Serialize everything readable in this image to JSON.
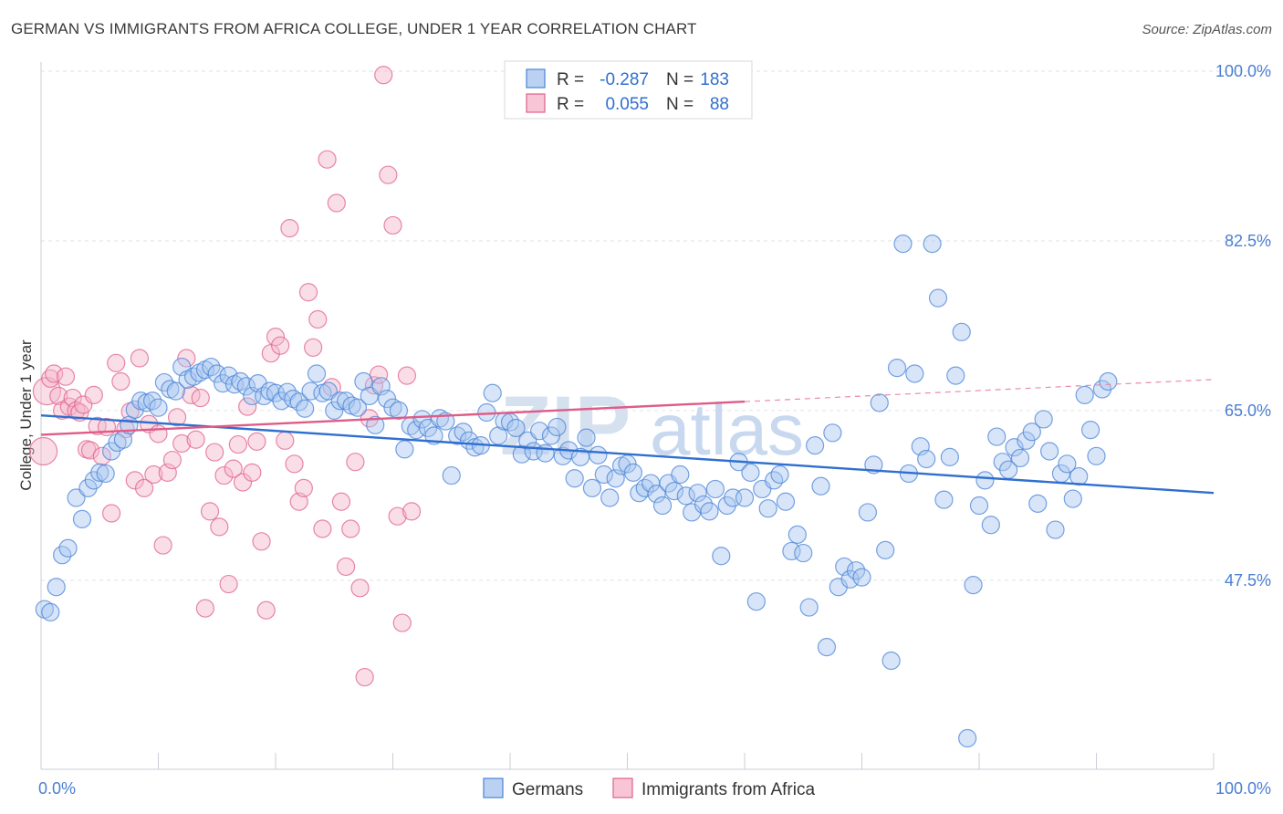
{
  "title": "GERMAN VS IMMIGRANTS FROM AFRICA COLLEGE, UNDER 1 YEAR CORRELATION CHART",
  "source": "Source: ZipAtlas.com",
  "watermark": {
    "zip": "ZIP",
    "atlas": "atlas"
  },
  "colors": {
    "blue": "#4a84d8",
    "blue_fill": "#a9c6ef",
    "pink": "#e0608c",
    "pink_fill": "#f5b6ca",
    "axis_label": "#4a7fd4"
  },
  "chart_data": {
    "type": "scatter",
    "ylabel": "College, Under 1 year",
    "xlim": [
      0,
      100
    ],
    "ylim": [
      28,
      100
    ],
    "x_ticks": [
      {
        "v": 0,
        "label": "0.0%"
      },
      {
        "v": 100,
        "label": "100.0%"
      }
    ],
    "y_ticks": [
      {
        "v": 100,
        "label": "100.0%"
      },
      {
        "v": 82.5,
        "label": "82.5%"
      },
      {
        "v": 65,
        "label": "65.0%"
      },
      {
        "v": 47.5,
        "label": "47.5%"
      }
    ],
    "legend": {
      "position": "top-center",
      "rows": [
        {
          "r_label": "R =",
          "r": "-0.287",
          "n_label": "N =",
          "n": "183"
        },
        {
          "r_label": "R =",
          "r": "0.055",
          "n_label": "N =",
          "n": "88"
        }
      ]
    },
    "bottom_legend": [
      "Germans",
      "Immigrants from Africa"
    ],
    "series": [
      {
        "name": "Germans",
        "trend": {
          "x": [
            0,
            100
          ],
          "y": [
            64.5,
            56.5
          ],
          "dashed_from": null
        },
        "points": [
          [
            0.3,
            44.5
          ],
          [
            0.8,
            44.2
          ],
          [
            1.3,
            46.8
          ],
          [
            1.8,
            50.1
          ],
          [
            2.3,
            50.8
          ],
          [
            3,
            56
          ],
          [
            3.5,
            53.8
          ],
          [
            4,
            57
          ],
          [
            4.5,
            57.8
          ],
          [
            5,
            58.6
          ],
          [
            5.5,
            58.5
          ],
          [
            6,
            60.8
          ],
          [
            6.5,
            61.7
          ],
          [
            7,
            62
          ],
          [
            7.5,
            63.5
          ],
          [
            8,
            65.1
          ],
          [
            8.5,
            66
          ],
          [
            9,
            65.8
          ],
          [
            9.5,
            66
          ],
          [
            10,
            65.3
          ],
          [
            10.5,
            67.9
          ],
          [
            11,
            67.2
          ],
          [
            11.5,
            67
          ],
          [
            12,
            69.5
          ],
          [
            12.5,
            68.2
          ],
          [
            13,
            68.5
          ],
          [
            13.5,
            68.9
          ],
          [
            14,
            69.2
          ],
          [
            14.5,
            69.5
          ],
          [
            15,
            68.8
          ],
          [
            15.5,
            67.8
          ],
          [
            16,
            68.6
          ],
          [
            16.5,
            67.7
          ],
          [
            17,
            68
          ],
          [
            17.5,
            67.5
          ],
          [
            18,
            66.5
          ],
          [
            18.5,
            67.8
          ],
          [
            19,
            66.5
          ],
          [
            19.5,
            67
          ],
          [
            20,
            66.8
          ],
          [
            20.5,
            66
          ],
          [
            21,
            66.9
          ],
          [
            21.5,
            66.2
          ],
          [
            22,
            65.9
          ],
          [
            22.5,
            65.2
          ],
          [
            23,
            67
          ],
          [
            23.5,
            68.8
          ],
          [
            24,
            66.8
          ],
          [
            24.5,
            67
          ],
          [
            25,
            65
          ],
          [
            25.5,
            66
          ],
          [
            26,
            66
          ],
          [
            26.5,
            65.5
          ],
          [
            27,
            65.3
          ],
          [
            27.5,
            68
          ],
          [
            28,
            66.5
          ],
          [
            28.5,
            63.5
          ],
          [
            29,
            67.5
          ],
          [
            29.5,
            66.2
          ],
          [
            30,
            65.3
          ],
          [
            30.5,
            65
          ],
          [
            31,
            61
          ],
          [
            31.5,
            63.4
          ],
          [
            32,
            63
          ],
          [
            32.5,
            64.1
          ],
          [
            33,
            63.2
          ],
          [
            33.5,
            62.4
          ],
          [
            34,
            64.2
          ],
          [
            34.5,
            63.9
          ],
          [
            35,
            58.3
          ],
          [
            35.5,
            62.4
          ],
          [
            36,
            62.8
          ],
          [
            36.5,
            61.9
          ],
          [
            37,
            61.2
          ],
          [
            37.5,
            61.4
          ],
          [
            38,
            64.8
          ],
          [
            38.5,
            66.8
          ],
          [
            39,
            62.4
          ],
          [
            39.5,
            63.9
          ],
          [
            40,
            63.8
          ],
          [
            40.5,
            63.2
          ],
          [
            41,
            60.5
          ],
          [
            41.5,
            61.9
          ],
          [
            42,
            60.8
          ],
          [
            42.5,
            62.9
          ],
          [
            43,
            60.6
          ],
          [
            43.5,
            62.4
          ],
          [
            44,
            63.3
          ],
          [
            44.5,
            60.3
          ],
          [
            45,
            60.9
          ],
          [
            45.5,
            58
          ],
          [
            46,
            60.2
          ],
          [
            46.5,
            62.2
          ],
          [
            47,
            57
          ],
          [
            47.5,
            60.4
          ],
          [
            48,
            58.4
          ],
          [
            48.5,
            56
          ],
          [
            49,
            58
          ],
          [
            49.5,
            59.3
          ],
          [
            50,
            59.5
          ],
          [
            50.5,
            58.6
          ],
          [
            51,
            56.5
          ],
          [
            51.5,
            57
          ],
          [
            52,
            57.5
          ],
          [
            52.5,
            56.4
          ],
          [
            53,
            55.2
          ],
          [
            53.5,
            57.5
          ],
          [
            54,
            56.7
          ],
          [
            54.5,
            58.4
          ],
          [
            55,
            56.2
          ],
          [
            55.5,
            54.5
          ],
          [
            56,
            56.5
          ],
          [
            56.5,
            55.3
          ],
          [
            57,
            54.6
          ],
          [
            57.5,
            56.9
          ],
          [
            58,
            50
          ],
          [
            58.5,
            55.2
          ],
          [
            59,
            56
          ],
          [
            59.5,
            59.7
          ],
          [
            60,
            56
          ],
          [
            60.5,
            58.6
          ],
          [
            61,
            45.3
          ],
          [
            61.5,
            56.9
          ],
          [
            62,
            54.9
          ],
          [
            62.5,
            57.8
          ],
          [
            63,
            58.4
          ],
          [
            63.5,
            55.6
          ],
          [
            64,
            50.5
          ],
          [
            64.5,
            52.2
          ],
          [
            65,
            50.3
          ],
          [
            65.5,
            44.7
          ],
          [
            66,
            61.4
          ],
          [
            66.5,
            57.2
          ],
          [
            67,
            40.6
          ],
          [
            67.5,
            62.7
          ],
          [
            68,
            46.8
          ],
          [
            68.5,
            48.9
          ],
          [
            69,
            47.6
          ],
          [
            69.5,
            48.5
          ],
          [
            70,
            47.8
          ],
          [
            70.5,
            54.5
          ],
          [
            71,
            59.4
          ],
          [
            71.5,
            65.8
          ],
          [
            72,
            50.6
          ],
          [
            72.5,
            39.2
          ],
          [
            73,
            69.4
          ],
          [
            73.5,
            82.2
          ],
          [
            74,
            58.5
          ],
          [
            74.5,
            68.8
          ],
          [
            75,
            61.3
          ],
          [
            75.5,
            60
          ],
          [
            76,
            82.2
          ],
          [
            76.5,
            76.6
          ],
          [
            77,
            55.8
          ],
          [
            77.5,
            60.2
          ],
          [
            78,
            68.6
          ],
          [
            78.5,
            73.1
          ],
          [
            79,
            31.2
          ],
          [
            79.5,
            47
          ],
          [
            80,
            55.2
          ],
          [
            80.5,
            57.8
          ],
          [
            81,
            53.2
          ],
          [
            81.5,
            62.3
          ],
          [
            82,
            59.7
          ],
          [
            82.5,
            58.9
          ],
          [
            83,
            61.2
          ],
          [
            83.5,
            60.1
          ],
          [
            84,
            61.9
          ],
          [
            84.5,
            62.8
          ],
          [
            85,
            55.4
          ],
          [
            85.5,
            64.1
          ],
          [
            86,
            60.8
          ],
          [
            86.5,
            52.7
          ],
          [
            87,
            58.5
          ],
          [
            87.5,
            59.5
          ],
          [
            88,
            55.9
          ],
          [
            88.5,
            58.2
          ],
          [
            89,
            66.6
          ],
          [
            89.5,
            63
          ],
          [
            90,
            60.3
          ],
          [
            90.5,
            67.2
          ],
          [
            91,
            68
          ]
        ]
      },
      {
        "name": "Immigrants from Africa",
        "trend": {
          "x": [
            0,
            100
          ],
          "y": [
            62.5,
            68.2
          ],
          "dashed_from": 60
        },
        "points": [
          [
            0.2,
            60.8
          ],
          [
            0.5,
            67
          ],
          [
            0.8,
            68.3
          ],
          [
            1.1,
            68.8
          ],
          [
            1.5,
            66.5
          ],
          [
            1.8,
            65
          ],
          [
            2.1,
            68.5
          ],
          [
            2.4,
            65.4
          ],
          [
            2.7,
            66.3
          ],
          [
            3,
            65
          ],
          [
            3.3,
            64.8
          ],
          [
            3.6,
            65.6
          ],
          [
            3.9,
            61
          ],
          [
            4.2,
            60.9
          ],
          [
            4.5,
            66.6
          ],
          [
            4.8,
            63.4
          ],
          [
            5.2,
            60.3
          ],
          [
            5.6,
            63.3
          ],
          [
            6,
            54.4
          ],
          [
            6.4,
            69.9
          ],
          [
            6.8,
            68
          ],
          [
            7.2,
            63.1
          ],
          [
            7.6,
            64.9
          ],
          [
            8,
            57.8
          ],
          [
            8.4,
            70.4
          ],
          [
            8.8,
            57
          ],
          [
            9.2,
            63.6
          ],
          [
            9.6,
            58.4
          ],
          [
            10,
            62.6
          ],
          [
            10.4,
            51.1
          ],
          [
            10.8,
            58.6
          ],
          [
            11.2,
            59.9
          ],
          [
            11.6,
            64.3
          ],
          [
            12,
            61.6
          ],
          [
            12.4,
            70.4
          ],
          [
            12.8,
            66.6
          ],
          [
            13.2,
            62
          ],
          [
            13.6,
            66.3
          ],
          [
            14,
            44.6
          ],
          [
            14.4,
            54.6
          ],
          [
            14.8,
            60.7
          ],
          [
            15.2,
            53
          ],
          [
            15.6,
            58.3
          ],
          [
            16,
            47.1
          ],
          [
            16.4,
            59
          ],
          [
            16.8,
            61.5
          ],
          [
            17.2,
            57.6
          ],
          [
            17.6,
            65.4
          ],
          [
            18,
            58.6
          ],
          [
            18.4,
            61.8
          ],
          [
            18.8,
            51.5
          ],
          [
            19.2,
            44.4
          ],
          [
            19.6,
            70.9
          ],
          [
            20,
            72.6
          ],
          [
            20.4,
            71.7
          ],
          [
            20.8,
            61.9
          ],
          [
            21.2,
            83.8
          ],
          [
            21.6,
            59.5
          ],
          [
            22,
            55.6
          ],
          [
            22.4,
            57
          ],
          [
            22.8,
            77.2
          ],
          [
            23.2,
            71.5
          ],
          [
            23.6,
            74.4
          ],
          [
            24,
            52.8
          ],
          [
            24.4,
            90.9
          ],
          [
            24.8,
            67.4
          ],
          [
            25.2,
            86.4
          ],
          [
            25.6,
            55.6
          ],
          [
            26,
            48.9
          ],
          [
            26.4,
            52.8
          ],
          [
            26.8,
            59.7
          ],
          [
            27.2,
            46.7
          ],
          [
            27.6,
            37.5
          ],
          [
            28,
            64.2
          ],
          [
            28.4,
            67.6
          ],
          [
            28.8,
            68.7
          ],
          [
            29.2,
            99.6
          ],
          [
            29.6,
            89.3
          ],
          [
            30,
            84.1
          ],
          [
            30.4,
            54.1
          ],
          [
            30.8,
            43.1
          ],
          [
            31.2,
            68.6
          ],
          [
            31.6,
            54.6
          ]
        ]
      }
    ]
  }
}
